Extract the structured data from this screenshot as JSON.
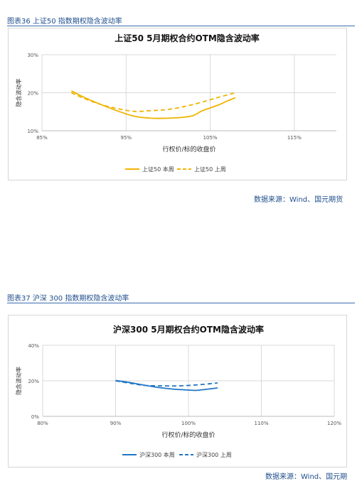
{
  "section1": {
    "caption": "图表36 上证50 指数期权隐含波动率",
    "source": "数据来源：Wind、国元期货"
  },
  "section2": {
    "caption": "图表37 沪深 300 指数期权隐含波动率",
    "source": "数据来源：Wind、国元期"
  },
  "colors": {
    "caption_text": "#1f4e8c",
    "chart1_series": "#f0b400",
    "chart2_series": "#1f77c4",
    "gridline": "#d9d9d9"
  },
  "chart_data": [
    {
      "type": "line",
      "title": "上证50  5月期权合约OTM隐含波动率",
      "xlabel": "行权价/标的收盘价",
      "ylabel": "隐含波动率",
      "x_ticks": [
        "85%",
        "95%",
        "105%",
        "115%"
      ],
      "y_ticks": [
        "10%",
        "20%",
        "30%"
      ],
      "xlim": [
        85,
        120
      ],
      "ylim": [
        10,
        30
      ],
      "grid": true,
      "legend_position": "bottom",
      "series": [
        {
          "name": "上证50 本周",
          "style": "solid",
          "x": [
            88.5,
            90,
            92,
            94,
            96,
            98,
            100,
            101,
            102,
            103,
            104,
            105,
            106,
            107,
            108
          ],
          "y": [
            20.5,
            18.8,
            16.9,
            15.2,
            13.8,
            13.3,
            13.3,
            13.4,
            13.6,
            14.0,
            15.2,
            16.0,
            16.8,
            17.8,
            18.7
          ]
        },
        {
          "name": "上证50 上周",
          "style": "dashed",
          "x": [
            88.5,
            90,
            92,
            94,
            96,
            98,
            100,
            102,
            104,
            106,
            108
          ],
          "y": [
            20.0,
            18.5,
            16.9,
            15.8,
            15.1,
            15.3,
            15.6,
            16.4,
            17.5,
            18.8,
            20.0
          ]
        }
      ]
    },
    {
      "type": "line",
      "title": "沪深300  5月期权合约OTM隐含波动率",
      "xlabel": "行权价/标的收盘价",
      "ylabel": "隐含波动率",
      "x_ticks": [
        "80%",
        "90%",
        "100%",
        "110%",
        "120%"
      ],
      "y_ticks": [
        "0%",
        "20%",
        "40%"
      ],
      "xlim": [
        80,
        120
      ],
      "ylim": [
        0,
        40
      ],
      "grid": true,
      "legend_position": "bottom",
      "series": [
        {
          "name": "沪深300 本周",
          "style": "solid",
          "x": [
            90,
            92,
            94,
            96,
            98,
            100,
            101,
            102,
            104
          ],
          "y": [
            20.2,
            19.0,
            17.5,
            16.2,
            15.3,
            14.8,
            14.6,
            15.0,
            16.0
          ]
        },
        {
          "name": "沪深300 上周",
          "style": "dashed",
          "x": [
            90,
            92,
            94,
            96,
            98,
            100,
            102,
            104
          ],
          "y": [
            20.0,
            18.6,
            17.4,
            17.2,
            17.1,
            17.4,
            18.0,
            18.8
          ]
        }
      ]
    }
  ]
}
